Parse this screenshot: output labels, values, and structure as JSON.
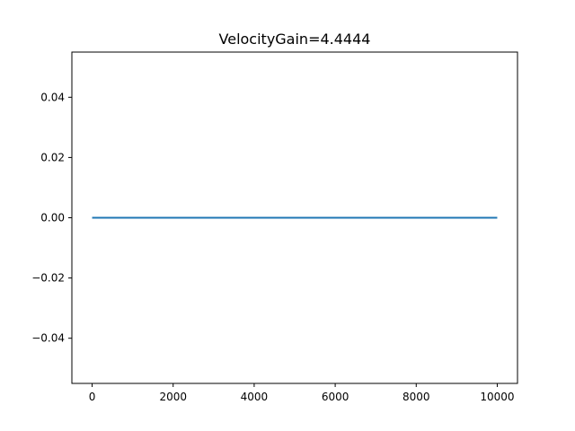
{
  "chart_data": {
    "type": "line",
    "title": "VelocityGain=4.4444",
    "xlabel": "",
    "ylabel": "",
    "xlim": [
      -500,
      10500
    ],
    "ylim": [
      -0.055,
      0.055
    ],
    "xticks": [
      0,
      2000,
      4000,
      6000,
      8000,
      10000
    ],
    "xtick_labels": [
      "0",
      "2000",
      "4000",
      "6000",
      "8000",
      "10000"
    ],
    "yticks": [
      -0.04,
      -0.02,
      0.0,
      0.02,
      0.04
    ],
    "ytick_labels": [
      "−0.04",
      "−0.02",
      "0.00",
      "0.02",
      "0.04"
    ],
    "grid": false,
    "series": [
      {
        "color": "#1f77b4",
        "x": [
          0,
          10000
        ],
        "y": [
          0,
          0
        ]
      }
    ]
  }
}
